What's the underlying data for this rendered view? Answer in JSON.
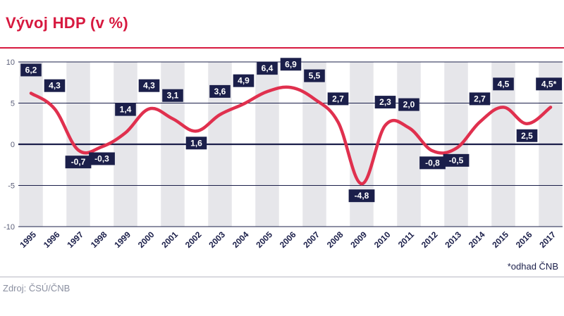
{
  "header": {
    "title": "Vývoj HDP (v %)"
  },
  "footer": {
    "source": "Zdroj: ČSÚ/ČNB",
    "note": "*odhad ČNB"
  },
  "colors": {
    "line": "#e0304e",
    "navy": "#1b1f4a",
    "band": "#e6e6ea",
    "title": "#d7193f"
  },
  "chart_data": {
    "type": "line",
    "title": "Vývoj HDP (v %)",
    "xlabel": "",
    "ylabel": "",
    "ylim": [
      -10,
      10
    ],
    "yticks": [
      10,
      5,
      0,
      -5,
      -10
    ],
    "categories": [
      "1995",
      "1996",
      "1997",
      "1998",
      "1999",
      "2000",
      "2001",
      "2002",
      "2003",
      "2004",
      "2005",
      "2006",
      "2007",
      "2008",
      "2009",
      "2010",
      "2011",
      "2012",
      "2013",
      "2014",
      "2015",
      "2016",
      "2017"
    ],
    "series": [
      {
        "name": "HDP",
        "values": [
          6.2,
          4.3,
          -0.7,
          -0.3,
          1.4,
          4.3,
          3.1,
          1.6,
          3.6,
          4.9,
          6.4,
          6.9,
          5.5,
          2.7,
          -4.8,
          2.3,
          2.0,
          -0.8,
          -0.5,
          2.7,
          4.5,
          2.5,
          4.5
        ]
      }
    ],
    "data_labels": [
      "6,2",
      "4,3",
      "-0,7",
      "-0,3",
      "1,4",
      "4,3",
      "3,1",
      "1,6",
      "3,6",
      "4,9",
      "6,4",
      "6,9",
      "5,5",
      "2,7",
      "-4,8",
      "2,3",
      "2,0",
      "-0,8",
      "-0,5",
      "2,7",
      "4,5",
      "2,5",
      "4,5*"
    ],
    "label_side": [
      "above",
      "above",
      "below",
      "below",
      "above",
      "above",
      "above",
      "below",
      "above",
      "above",
      "above",
      "above",
      "above",
      "above",
      "below",
      "above",
      "above",
      "below",
      "below",
      "above",
      "above",
      "below",
      "above"
    ]
  }
}
